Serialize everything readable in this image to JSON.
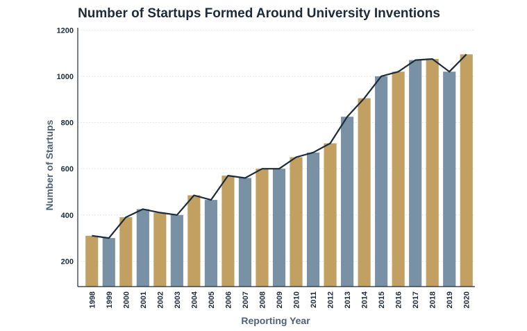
{
  "chart_data": {
    "type": "bar",
    "title": "Number of Startups Formed Around University Inventions",
    "xlabel": "Reporting Year",
    "ylabel": "Number of Startups",
    "categories": [
      "1998",
      "1999",
      "2000",
      "2001",
      "2002",
      "2003",
      "2004",
      "2005",
      "2006",
      "2007",
      "2008",
      "2009",
      "2010",
      "2011",
      "2012",
      "2013",
      "2014",
      "2015",
      "2016",
      "2017",
      "2018",
      "2019",
      "2020"
    ],
    "values": [
      310,
      300,
      390,
      425,
      410,
      400,
      485,
      465,
      570,
      560,
      600,
      600,
      650,
      670,
      710,
      825,
      905,
      1000,
      1020,
      1070,
      1075,
      1020,
      1095
    ],
    "line_values": [
      310,
      300,
      390,
      425,
      410,
      400,
      485,
      465,
      570,
      560,
      600,
      600,
      650,
      670,
      710,
      825,
      905,
      1000,
      1020,
      1070,
      1075,
      1020,
      1095
    ],
    "ylim": [
      90,
      1210
    ],
    "yticks": [
      200,
      400,
      600,
      800,
      1000,
      1200
    ],
    "grid": true,
    "colors": {
      "bar_gold": "#c1a062",
      "bar_slate": "#7891a5",
      "line": "#1c2b3a"
    },
    "bar_color_pattern": [
      "gold",
      "slate",
      "gold",
      "slate",
      "gold",
      "slate",
      "gold",
      "slate",
      "gold",
      "slate",
      "gold",
      "slate",
      "gold",
      "slate",
      "gold",
      "slate",
      "gold",
      "slate",
      "gold",
      "slate",
      "gold",
      "slate",
      "gold"
    ]
  }
}
